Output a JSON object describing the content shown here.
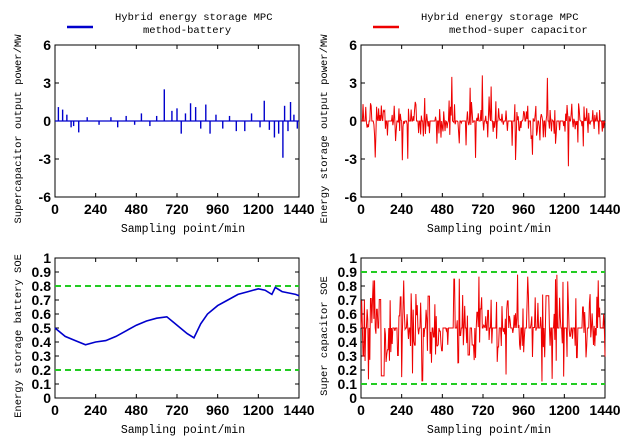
{
  "chart_data": [
    {
      "type": "line",
      "panel": "top-left",
      "legend": [
        "Hybrid energy storage MPC",
        "method-battery"
      ],
      "series": [
        {
          "name": "Hybrid energy storage MPC method-battery",
          "color": "#0000cc"
        }
      ],
      "xlabel": "Sampling point/min",
      "ylabel": "Supercapacitor output power/MW",
      "xlim": [
        0,
        1440
      ],
      "ylim": [
        -6,
        6
      ],
      "xticks": [
        "0",
        "240",
        "480",
        "720",
        "960",
        "1200",
        "1440"
      ],
      "yticks": [
        "6",
        "3",
        "0",
        "-3",
        "-6"
      ],
      "spikes": [
        [
          20,
          1.1
        ],
        [
          45,
          0.9
        ],
        [
          70,
          0.5
        ],
        [
          95,
          -0.5
        ],
        [
          110,
          -0.4
        ],
        [
          140,
          -0.9
        ],
        [
          190,
          0.3
        ],
        [
          260,
          -0.3
        ],
        [
          330,
          0.3
        ],
        [
          370,
          -0.5
        ],
        [
          420,
          0.4
        ],
        [
          470,
          -0.3
        ],
        [
          510,
          0.6
        ],
        [
          560,
          -0.4
        ],
        [
          600,
          0.4
        ],
        [
          645,
          2.5
        ],
        [
          690,
          0.8
        ],
        [
          720,
          1.0
        ],
        [
          745,
          -1.0
        ],
        [
          770,
          0.6
        ],
        [
          800,
          1.4
        ],
        [
          830,
          1.1
        ],
        [
          860,
          -0.6
        ],
        [
          890,
          1.3
        ],
        [
          915,
          -1.0
        ],
        [
          950,
          0.5
        ],
        [
          990,
          -0.6
        ],
        [
          1030,
          0.4
        ],
        [
          1070,
          -0.8
        ],
        [
          1120,
          -0.8
        ],
        [
          1160,
          0.6
        ],
        [
          1210,
          -0.5
        ],
        [
          1235,
          1.6
        ],
        [
          1265,
          -0.7
        ],
        [
          1295,
          -1.3
        ],
        [
          1320,
          -1.0
        ],
        [
          1345,
          -2.9
        ],
        [
          1355,
          1.2
        ],
        [
          1375,
          -0.8
        ],
        [
          1390,
          1.5
        ],
        [
          1410,
          0.5
        ],
        [
          1430,
          -0.6
        ]
      ]
    },
    {
      "type": "line",
      "panel": "top-right",
      "legend": [
        "Hybrid energy storage MPC",
        "method-super capacitor"
      ],
      "series": [
        {
          "name": "Hybrid energy storage MPC method-super capacitor",
          "color": "#ee0000"
        }
      ],
      "xlabel": "Sampling point/min",
      "ylabel": "Energy storage output power/MW",
      "xlim": [
        0,
        1440
      ],
      "ylim": [
        -6,
        6
      ],
      "xticks": [
        "0",
        "240",
        "480",
        "720",
        "960",
        "1200",
        "1440"
      ],
      "yticks": [
        "6",
        "3",
        "0",
        "-3",
        "-6"
      ],
      "signal": "dense red fluctuations of roughly +/-2.5 MW around 0, largest spikes near +3.7 and -3.5"
    },
    {
      "type": "line",
      "panel": "bottom-left",
      "series": [
        {
          "name": "battery SOE",
          "color": "#0000cc"
        }
      ],
      "xlabel": "Sampling point/min",
      "ylabel": "Energy storage battery SOE",
      "xlim": [
        0,
        1440
      ],
      "ylim": [
        0,
        1
      ],
      "xticks": [
        "0",
        "240",
        "480",
        "720",
        "960",
        "1200",
        "1440"
      ],
      "yticks": [
        "1",
        "0.9",
        "0.8",
        "0.7",
        "0.6",
        "0.5",
        "0.4",
        "0.3",
        "0.2",
        "0.1",
        "0"
      ],
      "limits": [
        0.2,
        0.8
      ],
      "limit_color": "#22cc22",
      "x": [
        0,
        60,
        120,
        180,
        240,
        300,
        360,
        420,
        480,
        540,
        600,
        660,
        700,
        740,
        780,
        820,
        860,
        900,
        960,
        1020,
        1080,
        1140,
        1200,
        1240,
        1280,
        1300,
        1340,
        1380,
        1420,
        1440
      ],
      "y": [
        0.5,
        0.44,
        0.41,
        0.38,
        0.4,
        0.41,
        0.44,
        0.48,
        0.52,
        0.55,
        0.57,
        0.58,
        0.54,
        0.5,
        0.46,
        0.43,
        0.53,
        0.6,
        0.66,
        0.7,
        0.74,
        0.76,
        0.78,
        0.77,
        0.74,
        0.79,
        0.76,
        0.75,
        0.74,
        0.73
      ]
    },
    {
      "type": "line",
      "panel": "bottom-right",
      "series": [
        {
          "name": "super capacitor SOE",
          "color": "#ee0000"
        }
      ],
      "xlabel": "Sampling point/min",
      "ylabel": "Super capacitor SOE",
      "xlim": [
        0,
        1440
      ],
      "ylim": [
        0,
        1
      ],
      "xticks": [
        "0",
        "240",
        "480",
        "720",
        "960",
        "1200",
        "1440"
      ],
      "yticks": [
        "1",
        "0.9",
        "0.8",
        "0.7",
        "0.6",
        "0.5",
        "0.4",
        "0.3",
        "0.2",
        "0.1",
        "0"
      ],
      "limits": [
        0.1,
        0.9
      ],
      "limit_color": "#22cc22",
      "signal": "dense red fluctuations around 0.5, ranging between about 0.1 and 0.9"
    }
  ]
}
